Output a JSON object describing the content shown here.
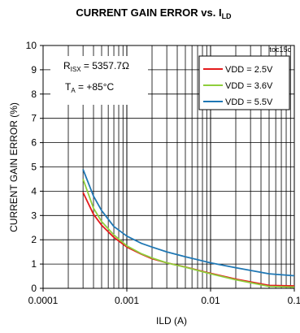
{
  "chart_data": {
    "type": "line",
    "title": {
      "main": "CURRENT GAIN ERROR vs. I",
      "subscript": "LD"
    },
    "tag": "toc15c",
    "xlabel": "ILD (A)",
    "ylabel": "CURRENT GAIN ERROR  (%)",
    "x_scale": "log",
    "xlim": [
      0.0001,
      0.1
    ],
    "ylim": [
      0,
      10
    ],
    "x_ticks": [
      {
        "value": 0.0001,
        "label": "0.0001"
      },
      {
        "value": 0.001,
        "label": "0.001"
      },
      {
        "value": 0.01,
        "label": "0.01"
      },
      {
        "value": 0.1,
        "label": "0.1"
      }
    ],
    "y_ticks": [
      {
        "value": 0,
        "label": "0"
      },
      {
        "value": 1,
        "label": "1"
      },
      {
        "value": 2,
        "label": "2"
      },
      {
        "value": 3,
        "label": "3"
      },
      {
        "value": 4,
        "label": "4"
      },
      {
        "value": 5,
        "label": "5"
      },
      {
        "value": 6,
        "label": "6"
      },
      {
        "value": 7,
        "label": "7"
      },
      {
        "value": 8,
        "label": "8"
      },
      {
        "value": 9,
        "label": "9"
      },
      {
        "value": 10,
        "label": "10"
      }
    ],
    "grid": true,
    "legend_position": "top-right",
    "annotations": {
      "r_line": {
        "pre": "R",
        "sub": "ISX",
        "post": " = 5357.7Ω"
      },
      "t_line": {
        "pre": "T",
        "sub": "A",
        "post": " = +85°C"
      }
    },
    "series": [
      {
        "name": "VDD = 2.5V",
        "color": "#e41a1c",
        "x": [
          0.0003,
          0.0004,
          0.0005,
          0.0007,
          0.001,
          0.0015,
          0.002,
          0.003,
          0.005,
          0.01,
          0.02,
          0.05,
          0.1
        ],
        "y": [
          3.95,
          3.05,
          2.6,
          2.1,
          1.7,
          1.4,
          1.22,
          1.05,
          0.88,
          0.62,
          0.38,
          0.12,
          0.1
        ]
      },
      {
        "name": "VDD = 3.6V",
        "color": "#8fce3c",
        "x": [
          0.0003,
          0.0004,
          0.0005,
          0.0007,
          0.001,
          0.0015,
          0.002,
          0.003,
          0.005,
          0.01,
          0.02,
          0.05,
          0.1
        ],
        "y": [
          4.5,
          3.3,
          2.75,
          2.2,
          1.75,
          1.42,
          1.25,
          1.05,
          0.87,
          0.6,
          0.35,
          0.08,
          0.05
        ]
      },
      {
        "name": "VDD = 5.5V",
        "color": "#1f77b4",
        "x": [
          0.0003,
          0.0004,
          0.0005,
          0.0007,
          0.001,
          0.0015,
          0.002,
          0.003,
          0.005,
          0.01,
          0.02,
          0.05,
          0.1
        ],
        "y": [
          4.9,
          3.8,
          3.2,
          2.55,
          2.15,
          1.85,
          1.7,
          1.5,
          1.3,
          1.05,
          0.85,
          0.6,
          0.52
        ]
      }
    ]
  }
}
